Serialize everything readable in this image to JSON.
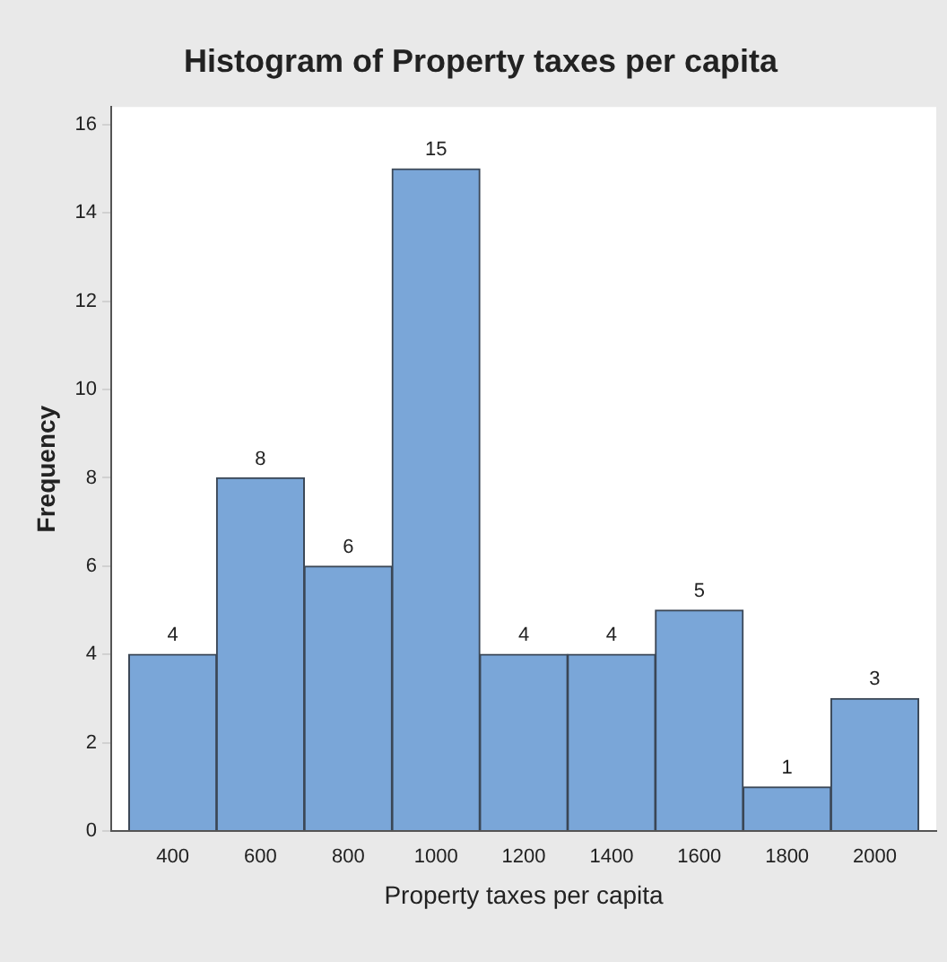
{
  "chart_data": {
    "type": "histogram",
    "title": "Histogram of Property taxes per capita",
    "xlabel": "Property taxes per capita",
    "ylabel": "Frequency",
    "bins": [
      300,
      500,
      700,
      900,
      1100,
      1300,
      1500,
      1700,
      1900,
      2100
    ],
    "values": [
      4,
      8,
      6,
      15,
      4,
      4,
      5,
      1,
      3
    ],
    "color": "#7aa6d8",
    "xlim": [
      260,
      2140
    ],
    "xticks": [
      400,
      600,
      800,
      1000,
      1200,
      1400,
      1600,
      1800,
      2000
    ],
    "ylim": [
      0,
      16.4
    ],
    "yticks": [
      0,
      2,
      4,
      6,
      8,
      10,
      12,
      14,
      16
    ],
    "data_labels": true,
    "grid": false,
    "legend": false
  }
}
